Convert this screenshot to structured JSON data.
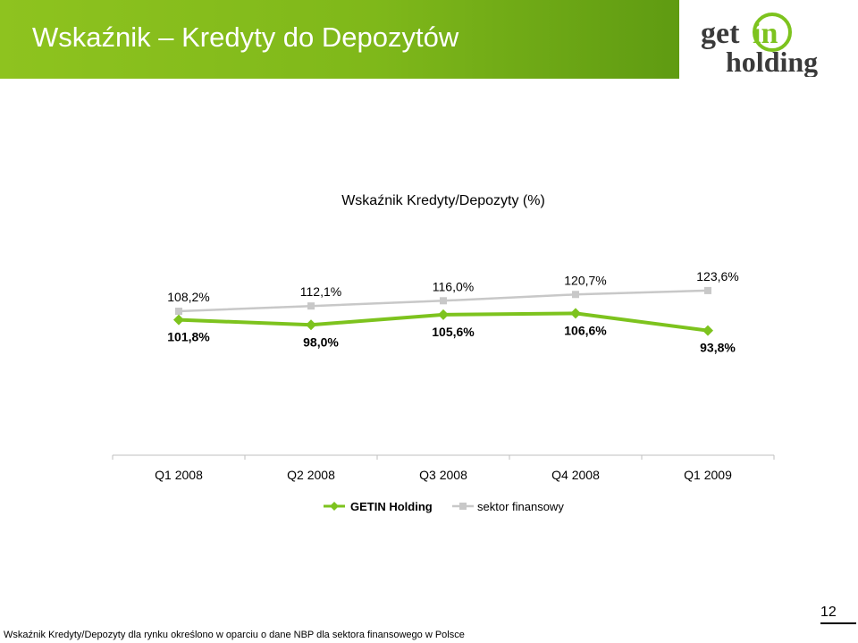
{
  "header": {
    "title": "Wskaźnik – Kredyty do Depozytów"
  },
  "logo": {
    "line1_a": "get",
    "line1_b": "in",
    "line2": "holding"
  },
  "colors": {
    "header_green": "#86bd1c",
    "getin_series": "#7dc31e",
    "sector_series": "#c8c8c8"
  },
  "chart_data": {
    "type": "line",
    "title": "Wskaźnik Kredyty/Depozyty (%)",
    "categories": [
      "Q1 2008",
      "Q2 2008",
      "Q3 2008",
      "Q4 2008",
      "Q1 2009"
    ],
    "series": [
      {
        "name": "GETIN Holding",
        "values": [
          101.8,
          98.0,
          105.6,
          106.6,
          93.8
        ],
        "labels": [
          "101,8%",
          "98,0%",
          "105,6%",
          "106,6%",
          "93,8%"
        ],
        "color": "#7dc31e",
        "marker": "diamond"
      },
      {
        "name": "sektor finansowy",
        "values": [
          108.2,
          112.1,
          116.0,
          120.7,
          123.6
        ],
        "labels": [
          "108,2%",
          "112,1%",
          "116,0%",
          "120,7%",
          "123,6%"
        ],
        "color": "#c8c8c8",
        "marker": "square"
      }
    ],
    "legend": "bottom"
  },
  "footnote": "Wskaźnik Kredyty/Depozyty dla rynku określono w oparciu o dane NBP dla sektora finansowego w Polsce",
  "page_number": "12"
}
